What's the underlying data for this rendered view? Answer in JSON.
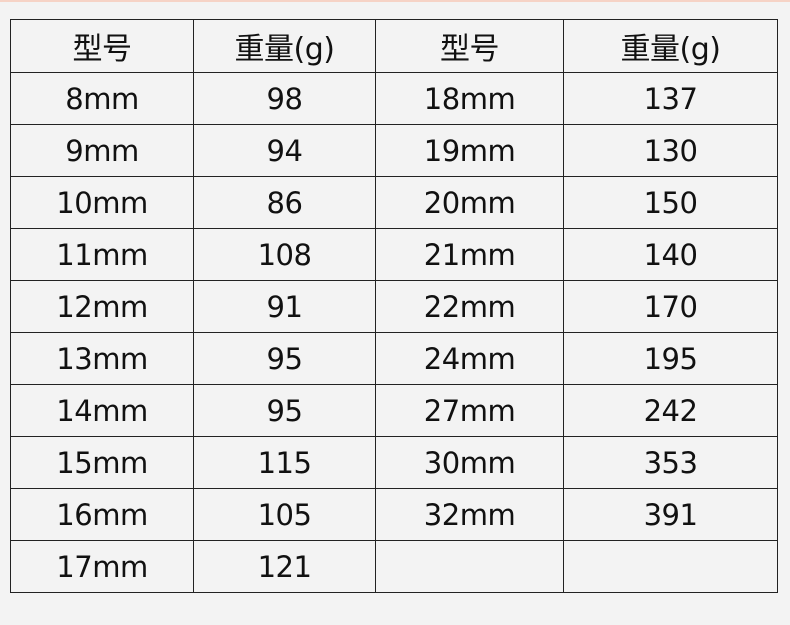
{
  "headers": [
    "型号",
    "重量(g)",
    "型号",
    "重量(g)"
  ],
  "rows": [
    [
      "8mm",
      "98",
      "18mm",
      "137"
    ],
    [
      "9mm",
      "94",
      "19mm",
      "130"
    ],
    [
      "10mm",
      "86",
      "20mm",
      "150"
    ],
    [
      "11mm",
      "108",
      "21mm",
      "140"
    ],
    [
      "12mm",
      "91",
      "22mm",
      "170"
    ],
    [
      "13mm",
      "95",
      "24mm",
      "195"
    ],
    [
      "14mm",
      "95",
      "27mm",
      "242"
    ],
    [
      "15mm",
      "115",
      "30mm",
      "353"
    ],
    [
      "16mm",
      "105",
      "32mm",
      "391"
    ],
    [
      "17mm",
      "121",
      "",
      ""
    ]
  ]
}
